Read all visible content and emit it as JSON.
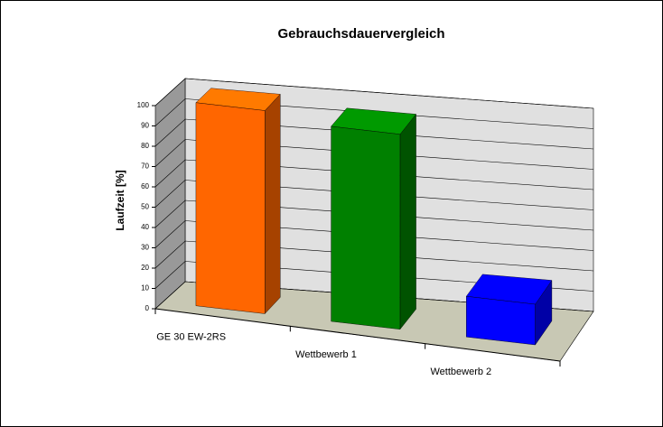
{
  "chart_data": {
    "type": "bar3d",
    "title": "Gebrauchsdauervergleich",
    "y_label": "Laufzeit [%]",
    "categories": [
      "GE 30 EW-2RS",
      "Wettbewerb 1",
      "Wettbewerb 2"
    ],
    "values": [
      100,
      96,
      20
    ],
    "colors": [
      "#ff6600",
      "#008000",
      "#0000ff"
    ],
    "ylim": [
      0,
      100
    ],
    "yticks": [
      0,
      10,
      20,
      30,
      40,
      50,
      60,
      70,
      80,
      90,
      100
    ],
    "grid": true
  }
}
